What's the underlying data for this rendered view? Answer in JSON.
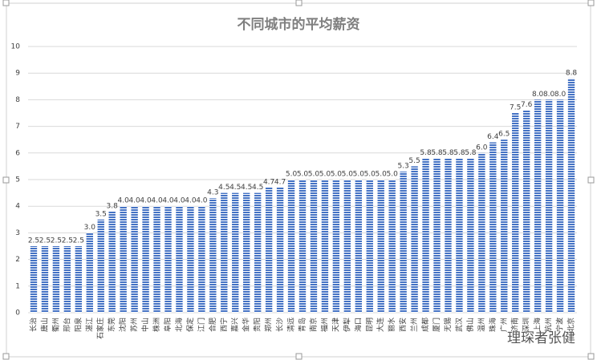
{
  "chart_data": {
    "type": "bar",
    "title": "不同城市的平均薪资",
    "categories": [
      "长治",
      "唐山",
      "衢州",
      "邢台",
      "阳泉",
      "湛江",
      "石家庄",
      "东莞",
      "沈阳",
      "苏州",
      "中山",
      "株洲",
      "阜阳",
      "北海",
      "保定",
      "江门",
      "合肥",
      "西宁",
      "嘉兴",
      "金华",
      "贵阳",
      "郑州",
      "长沙",
      "清远",
      "青岛",
      "南京",
      "福州",
      "天津",
      "伊犁",
      "海口",
      "昆明",
      "大连",
      "丽水",
      "西安",
      "兰州",
      "成都",
      "厦门",
      "无锡",
      "武汉",
      "佛山",
      "温州",
      "珠海",
      "广州",
      "济南",
      "深圳",
      "上海",
      "杭州",
      "宁波",
      "北京"
    ],
    "values": [
      2.5,
      2.5,
      2.5,
      2.5,
      2.5,
      3,
      3.5,
      3.8,
      4,
      4,
      4,
      4,
      4,
      4,
      4,
      4,
      4.3,
      4.5,
      4.5,
      4.5,
      4.5,
      4.7,
      4.7,
      5,
      5,
      5,
      5,
      5,
      5,
      5,
      5,
      5,
      5,
      5.3,
      5.5,
      5.8,
      5.8,
      5.8,
      5.8,
      5.8,
      6,
      6.4,
      6.5,
      7.5,
      7.6,
      8,
      8,
      8,
      8.8
    ],
    "value_labels": [
      "2.5",
      "2.5",
      "2.5",
      "2.5",
      "2.5",
      "3.0",
      "3.5",
      "3.8",
      "4.0",
      "4.0",
      "4.0",
      "4.0",
      "4.0",
      "4.0",
      "4.0",
      "4.0",
      "4.3",
      "4.5",
      "4.5",
      "4.5",
      "4.5",
      "4.7",
      "4.7",
      "5.0",
      "5.0",
      "5.0",
      "5.0",
      "5.0",
      "5.0",
      "5.0",
      "5.0",
      "5.0",
      "5.0",
      "5.3",
      "5.5",
      "5.8",
      "5.8",
      "5.8",
      "5.8",
      "5.8",
      "6.0",
      "6.4",
      "6.5",
      "7.5",
      "7.6",
      "8.0",
      "8.0",
      "8.0",
      "8.8"
    ],
    "color": "#4472c4",
    "ylim": [
      0,
      10
    ],
    "yticks": [
      0,
      1,
      2,
      3,
      4,
      5,
      6,
      7,
      8,
      9,
      10
    ],
    "grid": true
  },
  "watermark": "理琛者张健"
}
